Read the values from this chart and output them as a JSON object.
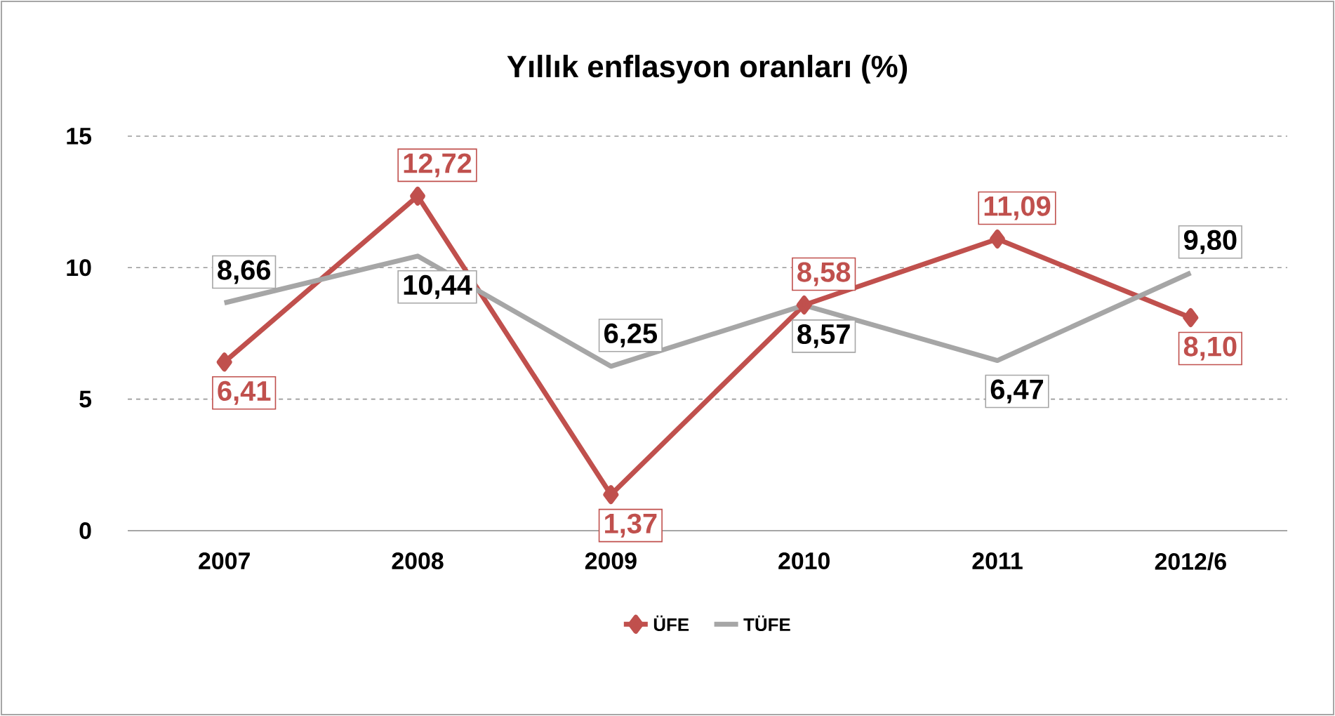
{
  "chart_data": {
    "type": "line",
    "title": "Yıllık enflasyon oranları (%)",
    "categories": [
      "2007",
      "2008",
      "2009",
      "2010",
      "2011",
      "2012/6"
    ],
    "series": [
      {
        "name": "ÜFE",
        "color": "#c0504d",
        "marker": "diamond",
        "values": [
          6.41,
          12.72,
          1.37,
          8.58,
          11.09,
          8.1
        ],
        "value_labels": [
          "6,41",
          "12,72",
          "1,37",
          "8,58",
          "11,09",
          "8,10"
        ]
      },
      {
        "name": "TÜFE",
        "color": "#a6a6a6",
        "marker": "none",
        "values": [
          8.66,
          10.44,
          6.25,
          8.57,
          6.47,
          9.8
        ],
        "value_labels": [
          "8,66",
          "10,44",
          "6,25",
          "8,57",
          "6,47",
          "9,80"
        ]
      }
    ],
    "ylim": [
      0,
      15
    ],
    "yticks": [
      0,
      5,
      10,
      15
    ],
    "grid": "y",
    "legend": "bottom"
  }
}
